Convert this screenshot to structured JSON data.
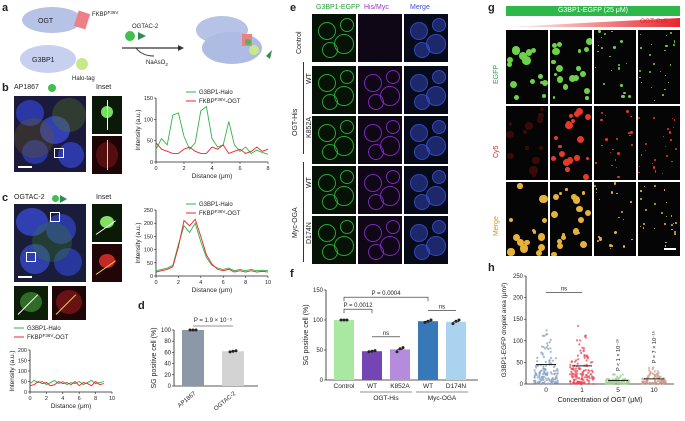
{
  "panel_labels": [
    "a",
    "b",
    "c",
    "d",
    "e",
    "f",
    "g",
    "h"
  ],
  "panel_a": {
    "ogt": "OGT",
    "fkbp": "FKBP",
    "fkbp_sup": "F36V",
    "g3bp1": "G3BP1",
    "halo": "Halo-tag",
    "ogtac": "OGTAC-2",
    "naaso2": "NaAsO",
    "naaso2_sub": "2"
  },
  "panel_b": {
    "title": "AP1867",
    "inset": "Inset"
  },
  "panel_c": {
    "title": "OGTAC-2",
    "inset": "Inset"
  },
  "line_legend": {
    "g3bp1": "G3BP1-Halo",
    "fkbp_a": "FKBP",
    "fkbp_sup": "F36V",
    "fkbp_b": "-OGT"
  },
  "line_axes": {
    "ylabel": "Intensity (a.u.)",
    "xlabel": "Distance (μm)"
  },
  "panel_e": {
    "columns": [
      "G3BP1-EGFP",
      "His/Myc",
      "Merge"
    ],
    "rows": [
      "Control",
      "WT",
      "K852A",
      "WT",
      "D174N"
    ],
    "groups": [
      "OGT-His",
      "Myc-OGA"
    ]
  },
  "panel_g": {
    "top_bar": "G3BP1-EGFP (25 μM)",
    "ramp": "OGT-Cy5",
    "rows": [
      "EGFP",
      "Cy5",
      "Merge"
    ]
  },
  "colors": {
    "green": "#33b24a",
    "red": "#e8262d",
    "blue": "#3a4fd6",
    "purple": "#8b2bd0"
  },
  "chart_data": [
    {
      "panel": "b",
      "type": "line",
      "xlabel": "Distance (μm)",
      "ylabel": "Intensity (a.u.)",
      "xlim": [
        0,
        8
      ],
      "ylim": [
        0,
        150
      ],
      "xticks": [
        "0",
        "2",
        "4",
        "6",
        "8"
      ],
      "yticks": [
        "0",
        "50",
        "100",
        "150"
      ],
      "series": [
        {
          "name": "G3BP1-Halo",
          "color": "#33b24a",
          "x": [
            0,
            0.4,
            0.8,
            1.2,
            1.6,
            2.0,
            2.4,
            2.8,
            3.2,
            3.6,
            4.0,
            4.4,
            4.8,
            5.2,
            5.6,
            6.0,
            6.4,
            6.8,
            7.2,
            7.6,
            8.0
          ],
          "y": [
            30,
            55,
            40,
            110,
            115,
            60,
            30,
            45,
            120,
            130,
            55,
            35,
            40,
            95,
            40,
            25,
            35,
            20,
            28,
            22,
            18
          ]
        },
        {
          "name": "FKBP-OGT",
          "color": "#e8262d",
          "x": [
            0,
            0.4,
            0.8,
            1.2,
            1.6,
            2.0,
            2.4,
            2.8,
            3.2,
            3.6,
            4.0,
            4.4,
            4.8,
            5.2,
            5.6,
            6.0,
            6.4,
            6.8,
            7.2,
            7.6,
            8.0
          ],
          "y": [
            45,
            30,
            25,
            20,
            20,
            30,
            35,
            25,
            20,
            20,
            35,
            30,
            40,
            20,
            25,
            30,
            20,
            25,
            35,
            25,
            30
          ]
        }
      ]
    },
    {
      "panel": "c",
      "type": "line",
      "xlabel": "Distance (μm)",
      "ylabel": "Intensity (a.u.)",
      "xlim": [
        0,
        10
      ],
      "ylim": [
        0,
        250
      ],
      "xticks": [
        "0",
        "2",
        "4",
        "6",
        "8",
        "10"
      ],
      "yticks": [
        "0",
        "50",
        "100",
        "150",
        "200",
        "250"
      ],
      "series": [
        {
          "name": "G3BP1-Halo",
          "color": "#33b24a",
          "x": [
            0,
            0.5,
            1,
            1.5,
            2,
            2.5,
            3,
            3.5,
            4,
            4.5,
            5,
            5.5,
            6,
            6.5,
            7,
            7.5,
            8,
            8.5,
            9,
            9.5,
            10
          ],
          "y": [
            20,
            25,
            30,
            40,
            120,
            190,
            165,
            200,
            130,
            70,
            40,
            30,
            25,
            30,
            20,
            25,
            20,
            25,
            20,
            22,
            20
          ]
        },
        {
          "name": "FKBP-OGT",
          "color": "#e8262d",
          "x": [
            0,
            0.5,
            1,
            1.5,
            2,
            2.5,
            3,
            3.5,
            4,
            4.5,
            5,
            5.5,
            6,
            6.5,
            7,
            7.5,
            8,
            8.5,
            9,
            9.5,
            10
          ],
          "y": [
            15,
            20,
            25,
            35,
            110,
            210,
            190,
            215,
            150,
            80,
            45,
            25,
            20,
            25,
            15,
            20,
            15,
            20,
            15,
            18,
            15
          ]
        }
      ]
    },
    {
      "panel": "c-lower",
      "type": "line",
      "xlabel": "Distance (μm)",
      "ylabel": "Intensity (a.u.)",
      "xlim": [
        0,
        10
      ],
      "ylim": [
        0,
        200
      ],
      "xticks": [
        "0",
        "2",
        "4",
        "6",
        "8",
        "10"
      ],
      "yticks": [
        "0",
        "50",
        "100",
        "150",
        "200"
      ],
      "series": [
        {
          "name": "G3BP1-Halo",
          "color": "#33b24a",
          "x": [
            0,
            0.5,
            1,
            1.5,
            2,
            2.5,
            3,
            3.5,
            4,
            4.5,
            5,
            5.5,
            6,
            6.5,
            7,
            7.5,
            8,
            8.5,
            9
          ],
          "y": [
            40,
            55,
            45,
            50,
            35,
            45,
            55,
            40,
            50,
            35,
            45,
            40,
            50,
            35,
            45,
            55,
            40,
            45,
            50
          ]
        },
        {
          "name": "FKBP-OGT",
          "color": "#e8262d",
          "x": [
            0,
            0.5,
            1,
            1.5,
            2,
            2.5,
            3,
            3.5,
            4,
            4.5,
            5,
            5.5,
            6,
            6.5,
            7,
            7.5,
            8,
            8.5,
            9
          ],
          "y": [
            30,
            35,
            50,
            40,
            45,
            30,
            35,
            50,
            40,
            45,
            35,
            50,
            30,
            45,
            40,
            30,
            50,
            35,
            40
          ]
        }
      ]
    },
    {
      "panel": "d",
      "type": "bar",
      "ylabel": "SG positive cell (%)",
      "ylim": [
        0,
        100
      ],
      "yticks": [
        "0",
        "20",
        "40",
        "60",
        "80",
        "100"
      ],
      "categories": [
        "AP1867",
        "OGTAC-2"
      ],
      "values": [
        100,
        62
      ],
      "points": [
        [
          100,
          100,
          100
        ],
        [
          61,
          62,
          63
        ]
      ],
      "colors": [
        "#8c97a8",
        "#d3d3d3"
      ],
      "annotations": [
        "P = 1.9 × 10⁻⁵"
      ]
    },
    {
      "panel": "f",
      "type": "bar",
      "ylabel": "SG positive cell (%)",
      "ylim": [
        0,
        150
      ],
      "yticks": [
        "0",
        "50",
        "100",
        "150"
      ],
      "categories": [
        "Control",
        "WT",
        "K852A",
        "WT",
        "D174N"
      ],
      "groups": [
        "OGT-His",
        "Myc-OGA"
      ],
      "values": [
        100,
        48,
        51,
        98,
        97
      ],
      "points": [
        [
          100,
          100,
          100
        ],
        [
          47,
          48,
          49
        ],
        [
          47,
          52,
          54
        ],
        [
          96,
          98,
          100
        ],
        [
          94,
          98,
          100
        ]
      ],
      "colors": [
        "#a8e8a0",
        "#7445b5",
        "#b58cdd",
        "#3778b8",
        "#a9d3ee"
      ],
      "annotations": [
        "P = 0.0012",
        "P = 0.0004",
        "ns",
        "ns"
      ]
    },
    {
      "panel": "h",
      "type": "scatter",
      "xlabel": "Concentration of OGT (μM)",
      "ylabel": "G3BP1-EGFP droplet area (μm²)",
      "ylim": [
        0,
        250
      ],
      "yticks": [
        "0",
        "50",
        "100",
        "150",
        "200",
        "250"
      ],
      "categories": [
        "0",
        "1",
        "5",
        "10"
      ],
      "means": [
        45,
        42,
        8,
        12
      ],
      "max": [
        205,
        200,
        22,
        40
      ],
      "colors": [
        "#8aa0bf",
        "#e84a5a",
        "#9fd08f",
        "#c89a88"
      ],
      "annotations": [
        "ns",
        "P < 1 × 10⁻¹⁶",
        "P = 7 × 10⁻¹⁶"
      ]
    }
  ]
}
